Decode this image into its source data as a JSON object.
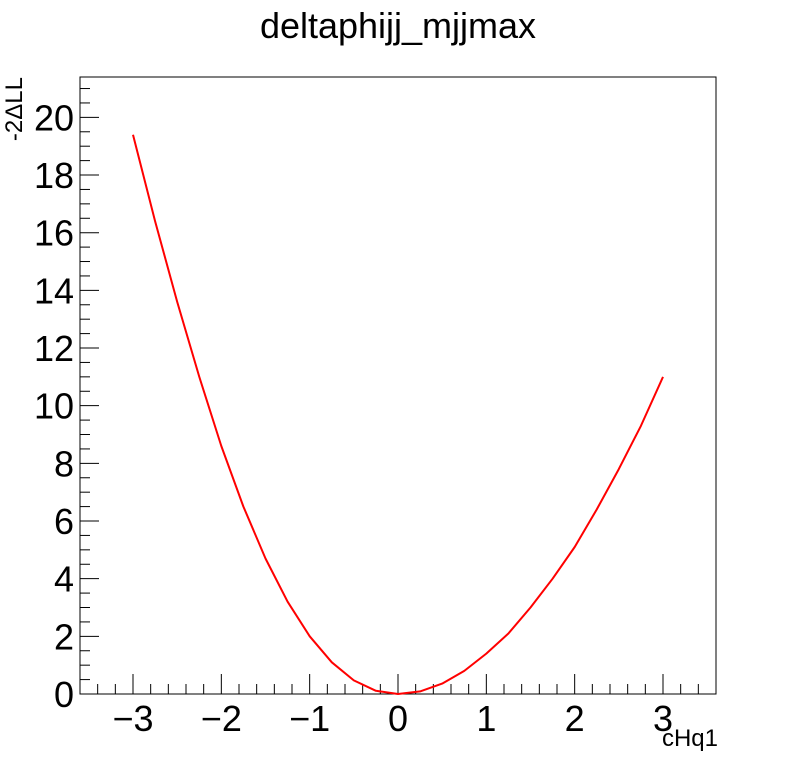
{
  "chart_data": {
    "type": "line",
    "title": "deltaphijj_mjjmax",
    "xlabel": "cHq1",
    "ylabel": "-2ΔLL",
    "xlim": [
      -3.6,
      3.6
    ],
    "ylim": [
      0,
      21.4
    ],
    "grid": false,
    "x_ticks": [
      -3,
      -2,
      -1,
      0,
      1,
      2,
      3
    ],
    "x_tick_labels": [
      "−3",
      "−2",
      "−1",
      "0",
      "1",
      "2",
      "3"
    ],
    "y_ticks": [
      0,
      2,
      4,
      6,
      8,
      10,
      12,
      14,
      16,
      18,
      20
    ],
    "y_tick_labels": [
      "0",
      "2",
      "4",
      "6",
      "8",
      "10",
      "12",
      "14",
      "16",
      "18",
      "20"
    ],
    "series": [
      {
        "color": "#ff0000",
        "x": [
          -3.0,
          -2.75,
          -2.5,
          -2.25,
          -2.0,
          -1.75,
          -1.5,
          -1.25,
          -1.0,
          -0.75,
          -0.5,
          -0.25,
          0.0,
          0.25,
          0.5,
          0.75,
          1.0,
          1.25,
          1.5,
          1.75,
          2.0,
          2.25,
          2.5,
          2.75,
          3.0
        ],
        "y": [
          19.4,
          16.4,
          13.6,
          11.0,
          8.6,
          6.5,
          4.7,
          3.2,
          2.0,
          1.1,
          0.47,
          0.11,
          0.0,
          0.09,
          0.36,
          0.8,
          1.4,
          2.1,
          3.0,
          4.0,
          5.1,
          6.4,
          7.8,
          9.3,
          11.0
        ]
      }
    ]
  }
}
